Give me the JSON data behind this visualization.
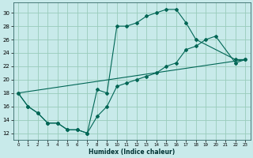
{
  "xlabel": "Humidex (Indice chaleur)",
  "bg_color": "#c8eaea",
  "grid_color": "#99ccbb",
  "line_color": "#006655",
  "xlim": [
    -0.5,
    23.5
  ],
  "ylim": [
    11,
    31.5
  ],
  "xticks": [
    0,
    1,
    2,
    3,
    4,
    5,
    6,
    7,
    8,
    9,
    10,
    11,
    12,
    13,
    14,
    15,
    16,
    17,
    18,
    19,
    20,
    21,
    22,
    23
  ],
  "yticks": [
    12,
    14,
    16,
    18,
    20,
    22,
    24,
    26,
    28,
    30
  ],
  "line1_x": [
    0,
    1,
    2,
    3,
    4,
    5,
    6,
    7,
    8,
    9,
    10,
    11,
    12,
    13,
    14,
    15,
    16,
    17,
    18,
    22,
    23
  ],
  "line1_y": [
    18,
    16,
    15,
    13.5,
    13.5,
    12.5,
    12.5,
    12,
    18.5,
    18,
    28,
    28,
    28.5,
    29.5,
    30,
    30.5,
    30.5,
    28.5,
    26,
    23,
    23
  ],
  "line2_x": [
    0,
    1,
    2,
    3,
    4,
    5,
    6,
    7,
    8,
    9,
    10,
    11,
    12,
    13,
    14,
    15,
    16,
    17,
    18,
    19,
    20,
    22,
    23
  ],
  "line2_y": [
    18,
    16,
    15,
    13.5,
    13.5,
    12.5,
    12.5,
    12,
    14.5,
    16,
    19,
    19.5,
    20,
    20.5,
    21,
    22,
    22.5,
    24.5,
    25,
    26,
    26.5,
    22.5,
    23
  ],
  "line3_x": [
    0,
    23
  ],
  "line3_y": [
    18,
    23
  ]
}
